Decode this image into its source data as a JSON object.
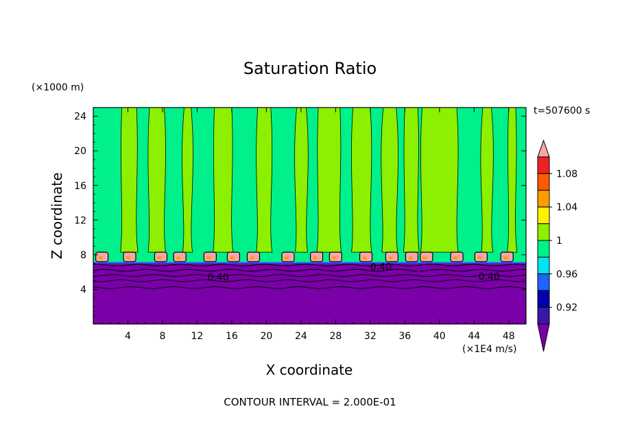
{
  "chart_data": {
    "type": "heatmap",
    "title": "Saturation Ratio",
    "xlabel": "X coordinate",
    "ylabel": "Z coordinate",
    "x_unit": "(×1E4 m/s)",
    "y_unit": "(×1000 m)",
    "time_label": "t=507600 s",
    "contour_interval_text": "CONTOUR INTERVAL = 2.000E-01",
    "xlim": [
      0,
      50
    ],
    "ylim": [
      0,
      25
    ],
    "x_ticks": [
      4,
      8,
      12,
      16,
      20,
      24,
      28,
      32,
      36,
      40,
      44,
      48
    ],
    "y_ticks": [
      4,
      8,
      12,
      16,
      20,
      24
    ],
    "colorbar": {
      "levels": [
        0.92,
        0.96,
        1,
        1.04,
        1.08
      ],
      "labels": [
        "0.92",
        "0.96",
        "1",
        "1.04",
        "1.08"
      ],
      "bins": [
        {
          "color": "#7a00a8"
        },
        {
          "color": "#3a17a8"
        },
        {
          "color": "#0000b0"
        },
        {
          "color": "#1e64ff"
        },
        {
          "color": "#00e5f0"
        },
        {
          "color": "#00f08c"
        },
        {
          "color": "#8cf000"
        },
        {
          "color": "#fff000"
        },
        {
          "color": "#ff9c00"
        },
        {
          "color": "#ff5a00"
        },
        {
          "color": "#f02020"
        },
        {
          "color": "#f5a8a8"
        }
      ]
    },
    "contour_labels": [
      {
        "text": "0.40",
        "x": 13.2,
        "z": 5.4
      },
      {
        "text": "0.40",
        "x": 44.5,
        "z": 5.5
      },
      {
        "text": "0.40",
        "x": 32.0,
        "z": 6.6
      }
    ],
    "layers": {
      "dry_top_z": 7.0,
      "cloud_top_z": 8.3,
      "bands_green_x": [
        [
          3.3,
          5.0
        ],
        [
          6.5,
          8.2
        ],
        [
          10.5,
          11.3
        ],
        [
          14.0,
          16.0
        ],
        [
          19.0,
          20.5
        ],
        [
          23.5,
          24.6
        ],
        [
          26.0,
          28.5
        ],
        [
          30.0,
          32.0
        ],
        [
          33.5,
          35.0
        ],
        [
          36.0,
          37.5
        ],
        [
          38.0,
          42.0
        ],
        [
          45.0,
          46.0
        ],
        [
          48.0,
          48.8
        ]
      ],
      "cloud_cells_x": [
        1.0,
        4.2,
        7.8,
        10.0,
        13.5,
        16.2,
        18.5,
        22.5,
        25.8,
        28.0,
        31.5,
        34.5,
        36.8,
        38.5,
        42.0,
        44.8,
        47.8
      ]
    }
  }
}
